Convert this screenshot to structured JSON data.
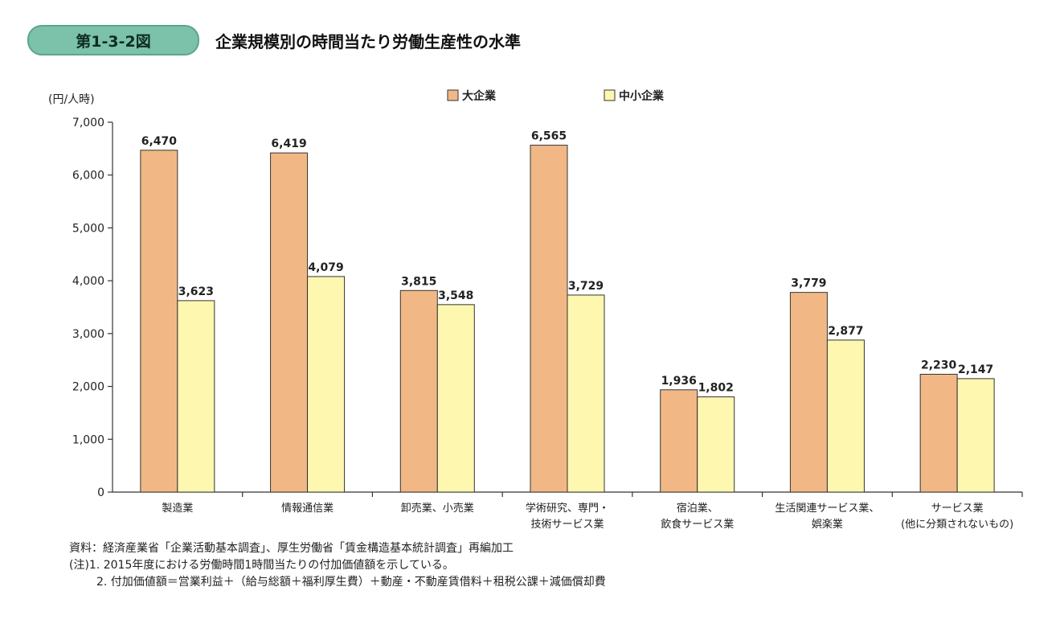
{
  "figure": {
    "label": "第1-3-2図",
    "title": "企業規模別の時間当たり労働生産性の水準"
  },
  "chart_data": {
    "type": "bar",
    "title": "企業規模別の時間当たり労働生産性の水準",
    "ylabel": "(円/人時)",
    "ylim": [
      0,
      7000
    ],
    "yticks": [
      0,
      1000,
      2000,
      3000,
      4000,
      5000,
      6000,
      7000
    ],
    "ytick_labels": [
      "0",
      "1,000",
      "2,000",
      "3,000",
      "4,000",
      "5,000",
      "6,000",
      "7,000"
    ],
    "legend_position": "top-center",
    "categories": [
      [
        "製造業"
      ],
      [
        "情報通信業"
      ],
      [
        "卸売業、小売業"
      ],
      [
        "学術研究、専門・",
        "技術サービス業"
      ],
      [
        "宿泊業、",
        "飲食サービス業"
      ],
      [
        "生活関連サービス業、",
        "娯楽業"
      ],
      [
        "サービス業",
        "(他に分類されないもの)"
      ]
    ],
    "series": [
      {
        "name": "大企業",
        "color": "#f1b886",
        "values": [
          6470,
          6419,
          3815,
          6565,
          1936,
          3779,
          2230
        ]
      },
      {
        "name": "中小企業",
        "color": "#fdf7b0",
        "values": [
          3623,
          4079,
          3548,
          3729,
          1802,
          2877,
          2147
        ]
      }
    ]
  },
  "notes": {
    "source": "資料：経済産業省「企業活動基本調査」、厚生労働省「賃金構造基本統計調査」再編加工",
    "note1": "(注)1. 2015年度における労働時間1時間当たりの付加価値額を示している。",
    "note2": "2. 付加価値額＝営業利益＋（給与総額＋福利厚生費）＋動産・不動産賃借料＋租税公課＋減価償却費"
  }
}
